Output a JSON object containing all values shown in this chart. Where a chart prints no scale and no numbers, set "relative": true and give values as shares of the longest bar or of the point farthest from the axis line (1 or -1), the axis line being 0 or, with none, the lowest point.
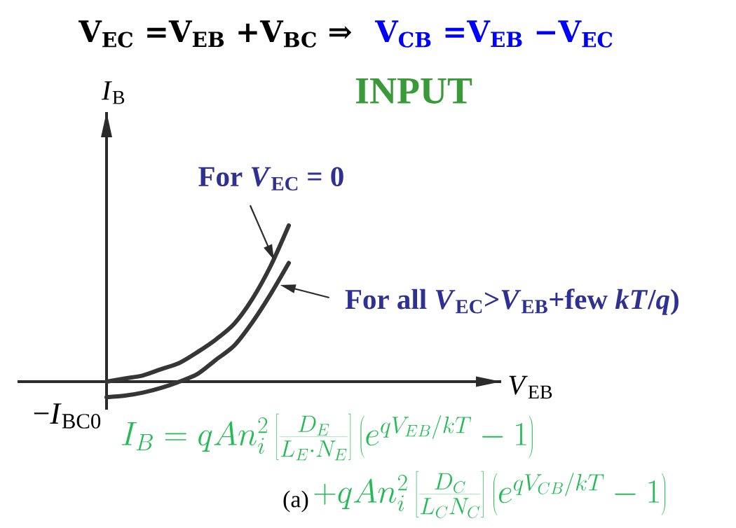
{
  "chart_data": {
    "type": "line",
    "relative": true,
    "title": "V$_{EC}$ =V$_{EB}$ +V$_{BC}$ ⇒",
    "subtitle": "V$_{CB}$ =V$_{EB}$ −V$_{EC}$",
    "xlabel": "*V*$_{EB}$",
    "ylabel": "*I*$_{B}$",
    "categories": [
      null,
      null,
      null,
      null,
      null,
      null,
      null,
      null,
      null,
      null,
      null,
      null,
      null,
      null,
      null,
      null,
      null,
      null,
      null,
      null,
      null,
      null
    ],
    "series": [
      {
        "name": "For *V*$_{EC}$ = 0",
        "color": "#363636",
        "values": [
          0,
          0.02,
          0.04,
          0.08,
          0.12,
          0.19,
          0.27,
          0.37,
          0.53,
          0.74,
          1,
          null,
          null,
          null,
          null,
          null,
          null,
          null,
          null,
          null,
          null,
          null
        ]
      },
      {
        "name": "For all *V*$_{EC}$>*V*$_{EB}$+few *kT*/*q*)",
        "color": "#363636",
        "values": [
          -0.1,
          -0.09,
          -0.07,
          -0.04,
          0,
          0.05,
          0.14,
          0.23,
          0.38,
          0.56,
          0.76,
          null,
          null,
          null,
          null,
          null,
          null,
          null,
          null,
          null,
          null,
          null
        ]
      }
    ],
    "annotations": [
      "INPUT",
      "−*I*$_{BC0}$",
      "(a)",
      "I_B=qAn_i^2\\left[\\frac{D_E}{L_E\\cdot N_E}\\right]\\left(e^{qV_{EB}/kT}-1\\right)",
      "+qAn_i^2\\left[\\frac{D_C}{L_C N_C}\\right]\\left(e^{qV_{CB}/kT}-1\\right)"
    ]
  }
}
